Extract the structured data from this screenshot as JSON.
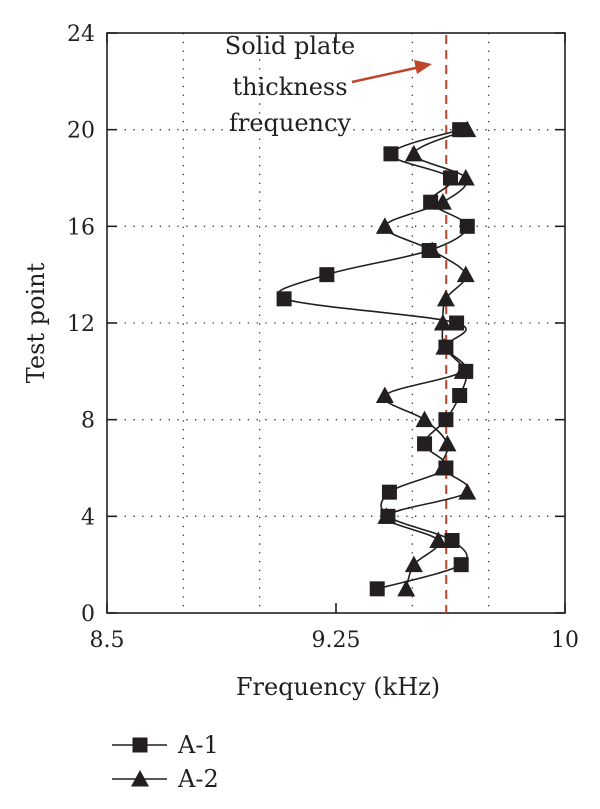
{
  "chart_data": {
    "type": "line",
    "xlabel": "Frequency (kHz)",
    "ylabel": "Test point",
    "xlim": [
      8.5,
      10
    ],
    "ylim": [
      0,
      24
    ],
    "xticks": [
      8.5,
      9.25,
      10
    ],
    "xtick_labels": [
      "8.5",
      "9.25",
      "10"
    ],
    "x_minor_grid": [
      8.75,
      9.0,
      9.5,
      9.75
    ],
    "yticks": [
      0,
      4,
      8,
      12,
      16,
      20,
      24
    ],
    "ytick_labels": [
      "0",
      "4",
      "8",
      "12",
      "16",
      "20",
      "24"
    ],
    "grid": "dotted",
    "reference_line": {
      "x": 9.611,
      "color": "#c0442a",
      "style": "dashed",
      "annotation_lines": [
        "Solid plate",
        "thickness",
        "frequency"
      ]
    },
    "legend_position": "bottom-left",
    "series": [
      {
        "name": "A-1",
        "marker": "square",
        "y": [
          1,
          2,
          3,
          4,
          5,
          6,
          7,
          8,
          9,
          10,
          11,
          12,
          13,
          14,
          15,
          16,
          17,
          18,
          19,
          20
        ],
        "x": [
          9.385,
          9.66,
          9.63,
          9.42,
          9.425,
          9.61,
          9.54,
          9.61,
          9.655,
          9.675,
          9.61,
          9.645,
          9.08,
          9.22,
          9.555,
          9.68,
          9.56,
          9.625,
          9.43,
          9.655
        ]
      },
      {
        "name": "A-2",
        "marker": "triangle",
        "y": [
          1,
          2,
          3,
          4,
          5,
          6,
          7,
          8,
          9,
          10,
          11,
          12,
          13,
          14,
          15,
          16,
          17,
          18,
          19,
          20
        ],
        "x": [
          9.48,
          9.505,
          9.585,
          9.415,
          9.68,
          9.6,
          9.615,
          9.54,
          9.41,
          9.665,
          9.605,
          9.6,
          9.61,
          9.675,
          9.565,
          9.41,
          9.6,
          9.675,
          9.505,
          9.68
        ]
      }
    ]
  }
}
